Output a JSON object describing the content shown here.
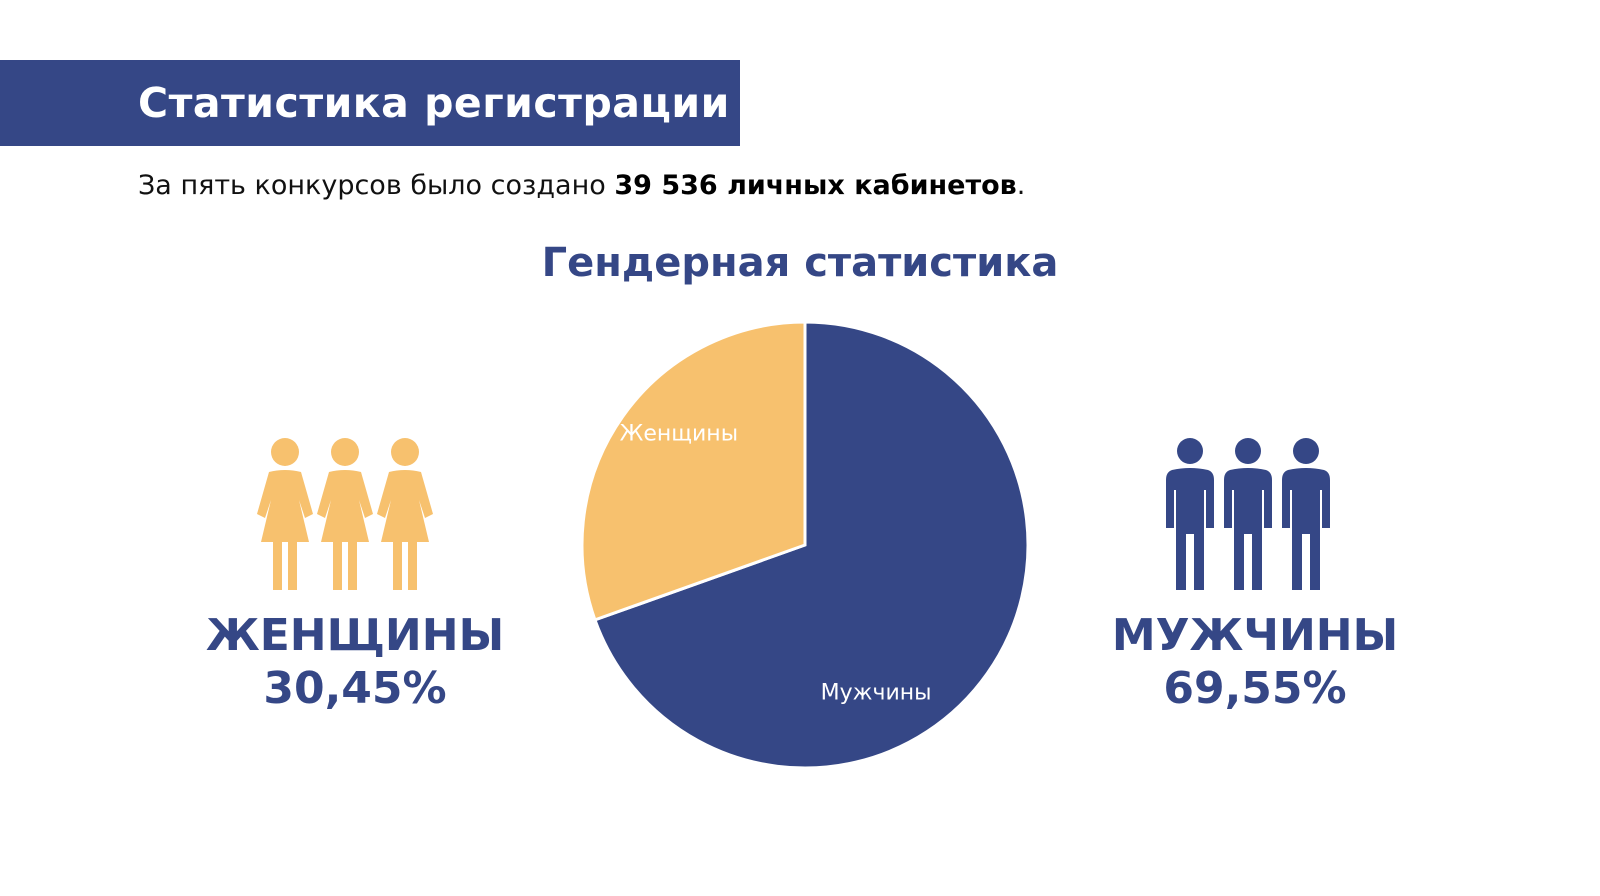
{
  "header": {
    "title": "Статистика регистрации"
  },
  "intro": {
    "text_before": "За пять конкурсов было создано ",
    "highlight": "39 536 личных кабинетов",
    "text_after": "."
  },
  "colors": {
    "navy": "#354786",
    "gold": "#F7C16E",
    "white": "#FFFFFF"
  },
  "women": {
    "label": "ЖЕНЩИНЫ",
    "percent": "30,45%",
    "icon": "women-group-icon"
  },
  "men": {
    "label": "МУЖЧИНЫ",
    "percent": "69,55%",
    "icon": "men-group-icon"
  },
  "chart_data": {
    "type": "pie",
    "title": "Гендерная статистика",
    "categories": [
      "Мужчины",
      "Женщины"
    ],
    "values": [
      69.55,
      30.45
    ],
    "colors": [
      "#354786",
      "#F7C16E"
    ],
    "start": "12 o'clock, clockwise",
    "labels_inside": true
  }
}
